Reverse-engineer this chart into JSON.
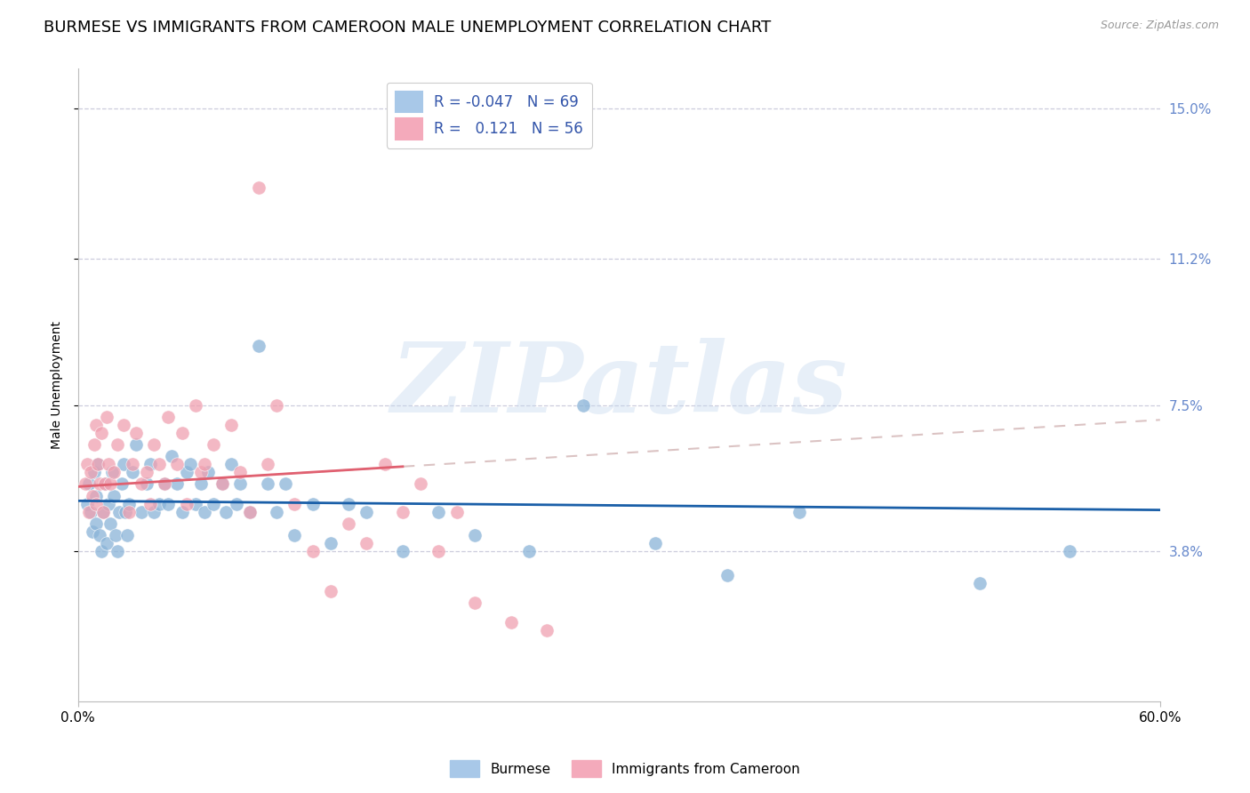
{
  "title": "BURMESE VS IMMIGRANTS FROM CAMEROON MALE UNEMPLOYMENT CORRELATION CHART",
  "source": "Source: ZipAtlas.com",
  "ylabel": "Male Unemployment",
  "watermark": "ZIPatlas",
  "x_min": 0.0,
  "x_max": 0.6,
  "y_min": 0.0,
  "y_max": 0.16,
  "yticks": [
    0.038,
    0.075,
    0.112,
    0.15
  ],
  "ytick_labels": [
    "3.8%",
    "7.5%",
    "11.2%",
    "15.0%"
  ],
  "blue_color": "#8ab4d8",
  "pink_color": "#f0a0b0",
  "blue_line_color": "#1a5fa8",
  "pink_line_color": "#e06070",
  "pink_dash_color": "#d4aabb",
  "blue_R": -0.047,
  "blue_N": 69,
  "pink_R": 0.121,
  "pink_N": 56,
  "blue_scatter_x": [
    0.005,
    0.006,
    0.007,
    0.008,
    0.009,
    0.01,
    0.01,
    0.011,
    0.012,
    0.013,
    0.014,
    0.015,
    0.016,
    0.017,
    0.018,
    0.019,
    0.02,
    0.021,
    0.022,
    0.023,
    0.024,
    0.025,
    0.026,
    0.027,
    0.028,
    0.03,
    0.032,
    0.035,
    0.038,
    0.04,
    0.042,
    0.045,
    0.048,
    0.05,
    0.052,
    0.055,
    0.058,
    0.06,
    0.062,
    0.065,
    0.068,
    0.07,
    0.072,
    0.075,
    0.08,
    0.082,
    0.085,
    0.088,
    0.09,
    0.095,
    0.1,
    0.105,
    0.11,
    0.115,
    0.12,
    0.13,
    0.14,
    0.15,
    0.16,
    0.18,
    0.2,
    0.22,
    0.25,
    0.28,
    0.32,
    0.36,
    0.4,
    0.5,
    0.55
  ],
  "blue_scatter_y": [
    0.05,
    0.055,
    0.048,
    0.043,
    0.058,
    0.045,
    0.052,
    0.06,
    0.042,
    0.038,
    0.048,
    0.055,
    0.04,
    0.05,
    0.045,
    0.058,
    0.052,
    0.042,
    0.038,
    0.048,
    0.055,
    0.06,
    0.048,
    0.042,
    0.05,
    0.058,
    0.065,
    0.048,
    0.055,
    0.06,
    0.048,
    0.05,
    0.055,
    0.05,
    0.062,
    0.055,
    0.048,
    0.058,
    0.06,
    0.05,
    0.055,
    0.048,
    0.058,
    0.05,
    0.055,
    0.048,
    0.06,
    0.05,
    0.055,
    0.048,
    0.09,
    0.055,
    0.048,
    0.055,
    0.042,
    0.05,
    0.04,
    0.05,
    0.048,
    0.038,
    0.048,
    0.042,
    0.038,
    0.075,
    0.04,
    0.032,
    0.048,
    0.03,
    0.038
  ],
  "pink_scatter_x": [
    0.004,
    0.005,
    0.006,
    0.007,
    0.008,
    0.009,
    0.01,
    0.01,
    0.011,
    0.012,
    0.013,
    0.014,
    0.015,
    0.016,
    0.017,
    0.018,
    0.02,
    0.022,
    0.025,
    0.028,
    0.03,
    0.032,
    0.035,
    0.038,
    0.04,
    0.042,
    0.045,
    0.048,
    0.05,
    0.055,
    0.058,
    0.06,
    0.065,
    0.068,
    0.07,
    0.075,
    0.08,
    0.085,
    0.09,
    0.095,
    0.1,
    0.105,
    0.11,
    0.12,
    0.13,
    0.14,
    0.15,
    0.16,
    0.17,
    0.18,
    0.19,
    0.2,
    0.21,
    0.22,
    0.24,
    0.26
  ],
  "pink_scatter_y": [
    0.055,
    0.06,
    0.048,
    0.058,
    0.052,
    0.065,
    0.05,
    0.07,
    0.06,
    0.055,
    0.068,
    0.048,
    0.055,
    0.072,
    0.06,
    0.055,
    0.058,
    0.065,
    0.07,
    0.048,
    0.06,
    0.068,
    0.055,
    0.058,
    0.05,
    0.065,
    0.06,
    0.055,
    0.072,
    0.06,
    0.068,
    0.05,
    0.075,
    0.058,
    0.06,
    0.065,
    0.055,
    0.07,
    0.058,
    0.048,
    0.13,
    0.06,
    0.075,
    0.05,
    0.038,
    0.028,
    0.045,
    0.04,
    0.06,
    0.048,
    0.055,
    0.038,
    0.048,
    0.025,
    0.02,
    0.018
  ],
  "background_color": "#ffffff",
  "grid_color": "#ccccdd",
  "title_fontsize": 13,
  "axis_label_fontsize": 10,
  "tick_fontsize": 11,
  "right_tick_color": "#6688cc",
  "legend_blue_label": "R = -0.047   N = 69",
  "legend_pink_label": "R =   0.121   N = 56"
}
